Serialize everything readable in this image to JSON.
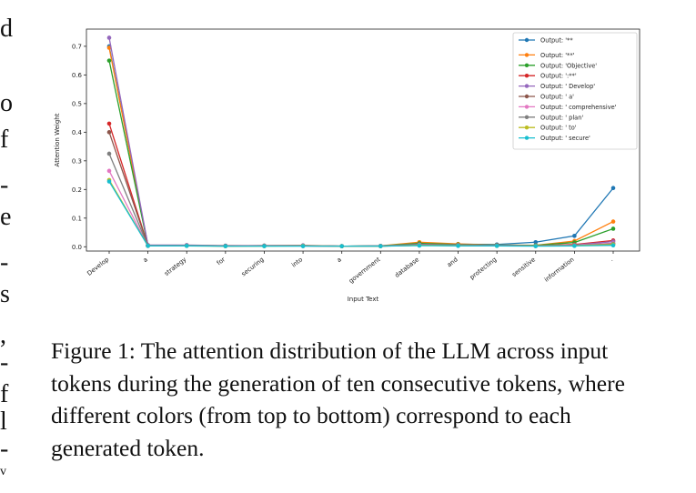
{
  "margin_fragments": [
    "d",
    "o",
    "f",
    "-",
    "e",
    "-",
    "s",
    ",",
    "-",
    "f",
    "l",
    "-",
    "v"
  ],
  "figure": {
    "caption_label": "Figure 1:",
    "caption_text": "The attention distribution of the LLM across input tokens during the generation of ten consecutive tokens, where different colors (from top to bottom) correspond to each generated token."
  },
  "chart_data": {
    "type": "line",
    "xlabel": "Input Text",
    "ylabel": "Attention Weight",
    "ylim": [
      -0.015,
      0.76
    ],
    "yticks": [
      0.0,
      0.1,
      0.2,
      0.3,
      0.4,
      0.5,
      0.6,
      0.7
    ],
    "categories": [
      "Develop",
      "a",
      "strategy",
      "for",
      "securing",
      "into",
      "a",
      "government",
      "database",
      "and",
      "protecting",
      "sensitive",
      "information",
      "."
    ],
    "legend_placement": "top-right",
    "grid": false,
    "series": [
      {
        "name": "Output: '**",
        "color": "#1f77b4",
        "values": [
          0.7,
          0.005,
          0.005,
          0.003,
          0.004,
          0.004,
          0.002,
          0.003,
          0.01,
          0.009,
          0.008,
          0.016,
          0.038,
          0.205
        ]
      },
      {
        "name": "Output: '**'",
        "color": "#ff7f0e",
        "values": [
          0.695,
          0.005,
          0.005,
          0.003,
          0.004,
          0.004,
          0.002,
          0.003,
          0.016,
          0.01,
          0.006,
          0.005,
          0.02,
          0.088
        ]
      },
      {
        "name": "Output: 'Objective'",
        "color": "#2ca02c",
        "values": [
          0.65,
          0.004,
          0.004,
          0.003,
          0.003,
          0.004,
          0.002,
          0.003,
          0.012,
          0.008,
          0.006,
          0.005,
          0.015,
          0.063
        ]
      },
      {
        "name": "Output: ':**'",
        "color": "#d62728",
        "values": [
          0.43,
          0.004,
          0.004,
          0.003,
          0.003,
          0.003,
          0.002,
          0.002,
          0.008,
          0.006,
          0.005,
          0.004,
          0.008,
          0.022
        ]
      },
      {
        "name": "Output: ' Develop'",
        "color": "#9467bd",
        "values": [
          0.73,
          0.006,
          0.006,
          0.004,
          0.004,
          0.005,
          0.002,
          0.003,
          0.008,
          0.006,
          0.005,
          0.004,
          0.006,
          0.018
        ]
      },
      {
        "name": "Output: ' a'",
        "color": "#8c564b",
        "values": [
          0.4,
          0.004,
          0.004,
          0.003,
          0.003,
          0.003,
          0.002,
          0.002,
          0.006,
          0.005,
          0.004,
          0.003,
          0.005,
          0.012
        ]
      },
      {
        "name": "Output: ' comprehensive'",
        "color": "#e377c2",
        "values": [
          0.265,
          0.003,
          0.004,
          0.002,
          0.003,
          0.003,
          0.002,
          0.002,
          0.006,
          0.005,
          0.004,
          0.003,
          0.005,
          0.012
        ]
      },
      {
        "name": "Output: ' plan'",
        "color": "#7f7f7f",
        "values": [
          0.325,
          0.003,
          0.004,
          0.002,
          0.003,
          0.003,
          0.002,
          0.002,
          0.005,
          0.004,
          0.004,
          0.003,
          0.004,
          0.01
        ]
      },
      {
        "name": "Output: ' to'",
        "color": "#bcbd22",
        "values": [
          0.233,
          0.003,
          0.003,
          0.002,
          0.002,
          0.003,
          0.002,
          0.002,
          0.005,
          0.004,
          0.003,
          0.003,
          0.004,
          0.008
        ]
      },
      {
        "name": "Output: ' secure'",
        "color": "#17becf",
        "values": [
          0.228,
          0.003,
          0.003,
          0.002,
          0.002,
          0.002,
          0.002,
          0.002,
          0.004,
          0.003,
          0.003,
          0.002,
          0.003,
          0.005
        ]
      }
    ]
  }
}
